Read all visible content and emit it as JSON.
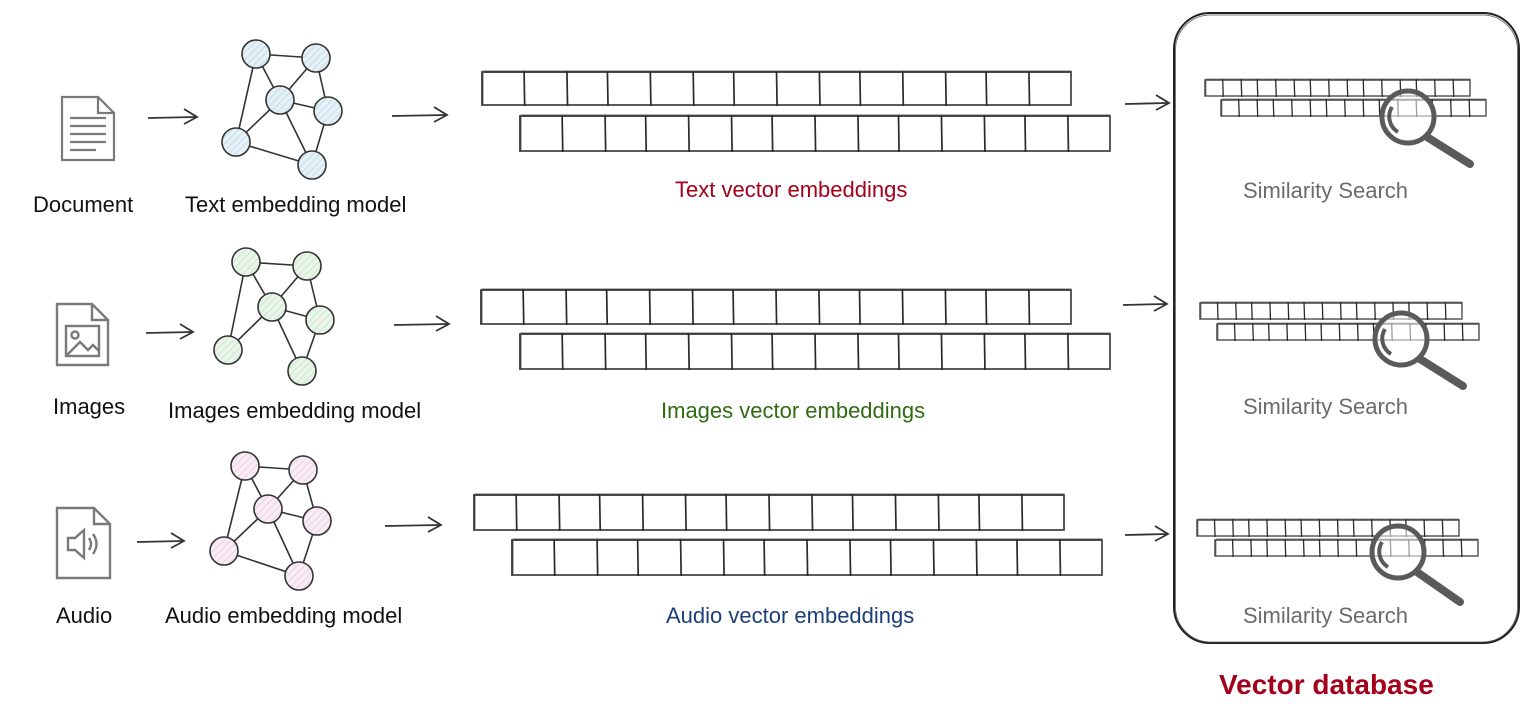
{
  "colors": {
    "text_embeddings": "#a3001b",
    "images_embeddings": "#2f6b12",
    "audio_embeddings": "#1d3f78",
    "vector_database": "#a3001b",
    "similarity_search": "#6b6b6b",
    "text_node_fill": "#dbe9f2",
    "images_node_fill": "#dff0e0",
    "audio_node_fill": "#f4e1f0"
  },
  "rows": [
    {
      "input_icon": "document-icon",
      "input_label": "Document",
      "model_label": "Text embedding model",
      "embeddings_label": "Text vector embeddings",
      "search_label": "Similarity Search"
    },
    {
      "input_icon": "image-file-icon",
      "input_label": "Images",
      "model_label": "Images embedding model",
      "embeddings_label": "Images vector embeddings",
      "search_label": "Similarity Search"
    },
    {
      "input_icon": "audio-file-icon",
      "input_label": "Audio",
      "model_label": "Audio embedding model",
      "embeddings_label": "Audio vector embeddings",
      "search_label": "Similarity Search"
    }
  ],
  "database": {
    "title": "Vector database",
    "search_icon": "magnifier-icon"
  }
}
